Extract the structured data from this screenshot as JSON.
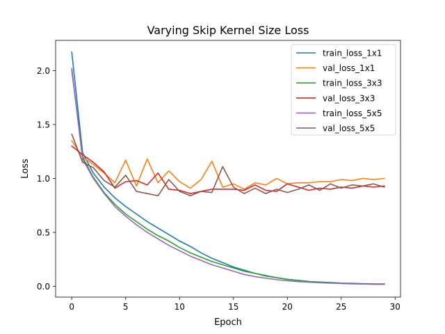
{
  "chart_data": {
    "type": "line",
    "title": "Varying Skip Kernel Size Loss",
    "xlabel": "Epoch",
    "ylabel": "Loss",
    "xlim": [
      -1.5,
      30.5
    ],
    "ylim": [
      -0.1,
      2.28
    ],
    "xticks": [
      0,
      5,
      10,
      15,
      20,
      25,
      30
    ],
    "xtick_labels": [
      "0",
      "5",
      "10",
      "15",
      "20",
      "25",
      "30"
    ],
    "yticks": [
      0.0,
      0.5,
      1.0,
      1.5,
      2.0
    ],
    "ytick_labels": [
      "0.0",
      "0.5",
      "1.0",
      "1.5",
      "2.0"
    ],
    "grid": false,
    "legend_position": "top-right",
    "x": [
      0,
      1,
      2,
      3,
      4,
      5,
      6,
      7,
      8,
      9,
      10,
      11,
      12,
      13,
      14,
      15,
      16,
      17,
      18,
      19,
      20,
      21,
      22,
      23,
      24,
      25,
      26,
      27,
      28,
      29
    ],
    "series": [
      {
        "name": "train_loss_1x1",
        "color": "#1f77b4",
        "values": [
          2.17,
          1.24,
          1.05,
          0.92,
          0.82,
          0.74,
          0.67,
          0.6,
          0.54,
          0.48,
          0.42,
          0.37,
          0.31,
          0.26,
          0.22,
          0.18,
          0.15,
          0.12,
          0.1,
          0.08,
          0.065,
          0.055,
          0.045,
          0.04,
          0.035,
          0.03,
          0.028,
          0.025,
          0.023,
          0.022
        ]
      },
      {
        "name": "val_loss_1x1",
        "color": "#ff7f0e",
        "values": [
          1.35,
          1.2,
          1.13,
          1.05,
          0.96,
          1.17,
          0.93,
          1.18,
          0.96,
          1.07,
          0.97,
          0.91,
          0.99,
          1.16,
          0.92,
          0.95,
          0.9,
          0.96,
          0.94,
          1.0,
          0.95,
          0.96,
          0.96,
          0.97,
          0.97,
          0.99,
          0.98,
          1.0,
          0.99,
          1.0
        ]
      },
      {
        "name": "train_loss_3x3",
        "color": "#2ca02c",
        "values": [
          2.0,
          1.2,
          1.01,
          0.87,
          0.76,
          0.67,
          0.6,
          0.53,
          0.47,
          0.42,
          0.36,
          0.31,
          0.27,
          0.23,
          0.2,
          0.17,
          0.14,
          0.12,
          0.095,
          0.08,
          0.065,
          0.055,
          0.045,
          0.038,
          0.032,
          0.028,
          0.025,
          0.022,
          0.02,
          0.019
        ]
      },
      {
        "name": "val_loss_3x3",
        "color": "#d62728",
        "values": [
          1.3,
          1.22,
          1.15,
          1.06,
          0.91,
          0.97,
          0.98,
          0.94,
          1.05,
          0.9,
          0.89,
          0.86,
          0.88,
          0.9,
          0.9,
          0.9,
          0.89,
          0.94,
          0.89,
          0.88,
          0.95,
          0.92,
          0.89,
          0.91,
          0.9,
          0.92,
          0.91,
          0.93,
          0.92,
          0.93
        ]
      },
      {
        "name": "train_loss_5x5",
        "color": "#9467bd",
        "values": [
          2.02,
          1.18,
          1.0,
          0.86,
          0.74,
          0.65,
          0.57,
          0.5,
          0.44,
          0.38,
          0.33,
          0.28,
          0.24,
          0.2,
          0.17,
          0.14,
          0.11,
          0.09,
          0.075,
          0.062,
          0.052,
          0.044,
          0.038,
          0.033,
          0.029,
          0.026,
          0.023,
          0.021,
          0.02,
          0.018
        ]
      },
      {
        "name": "val_loss_5x5",
        "color": "#8c564b",
        "values": [
          1.41,
          1.15,
          1.1,
          0.98,
          0.92,
          1.03,
          0.88,
          0.86,
          0.84,
          0.99,
          0.88,
          0.84,
          0.88,
          0.87,
          1.11,
          0.92,
          0.86,
          0.91,
          0.86,
          0.9,
          0.87,
          0.9,
          0.94,
          0.89,
          0.95,
          0.91,
          0.94,
          0.93,
          0.95,
          0.92
        ]
      }
    ]
  }
}
